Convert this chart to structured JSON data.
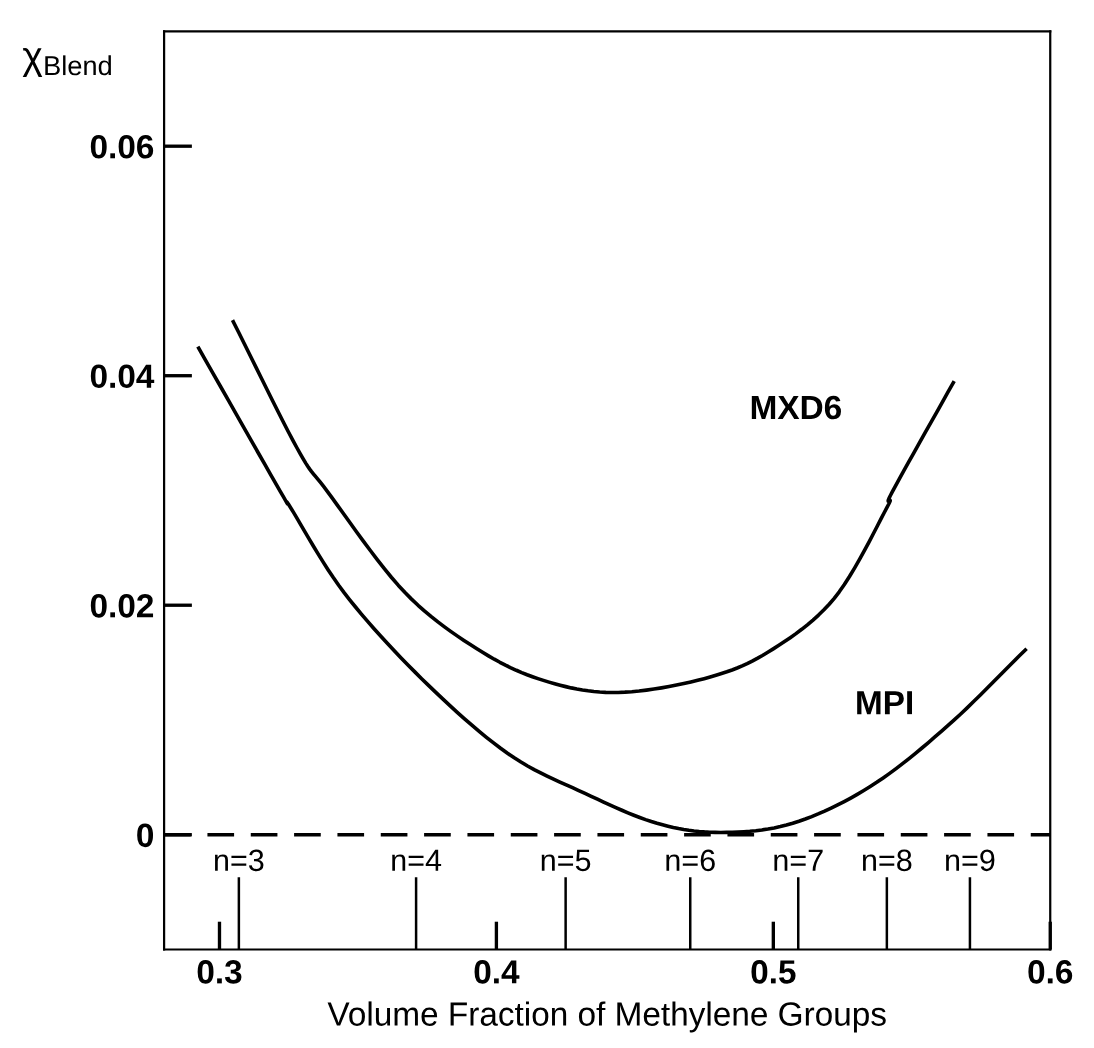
{
  "chart_data": {
    "type": "line",
    "xlabel": "Volume Fraction of Methylene Groups",
    "ylabel": "χ$_{Blend}$",
    "xlim": [
      0.28,
      0.6
    ],
    "ylim": [
      -0.01,
      0.07
    ],
    "xticks": [
      0.3,
      0.4,
      0.5,
      0.6
    ],
    "yticks": [
      0,
      0.02,
      0.04,
      0.06
    ],
    "grid": false,
    "legend": false,
    "marker": "none",
    "line_style": "solid",
    "series": [
      {
        "name": "MXD6",
        "color": "#000000",
        "x": [
          0.305,
          0.328,
          0.339,
          0.367,
          0.395,
          0.419,
          0.444,
          0.475,
          0.498,
          0.522,
          0.541,
          0.543,
          0.565
        ],
        "values": [
          0.0447,
          0.0337,
          0.0299,
          0.0211,
          0.0159,
          0.0133,
          0.0124,
          0.0136,
          0.0159,
          0.0206,
          0.0285,
          0.0299,
          0.0394
        ]
      },
      {
        "type": "bar",
        "color": "#000000",
        "x": [
          0.307,
          0.371,
          0.425,
          0.47,
          0.509,
          0.541,
          0.571
        ],
        "base": [
          -0.01,
          -0.01,
          -0.01,
          -0.01,
          -0.01,
          -0.01,
          -0.01
        ],
        "values": [
          0.0063,
          0.0063,
          0.0063,
          0.0063,
          0.0063,
          0.0063,
          0.0063
        ]
      },
      {
        "name": "MPI",
        "color": "#000000",
        "x": [
          0.2925,
          0.322,
          0.3257,
          0.345,
          0.373,
          0.404,
          0.432,
          0.458,
          0.481,
          0.507,
          0.535,
          0.563,
          0.591
        ],
        "values": [
          0.0424,
          0.0299,
          0.0285,
          0.0211,
          0.0136,
          0.0071,
          0.0036,
          0.001,
          0.0002,
          0.001,
          0.0042,
          0.0095,
          0.0161
        ]
      }
    ],
    "ref_lines": [
      {
        "axis": "y",
        "value": 0,
        "line_style": "dashed",
        "color": "#000000"
      }
    ],
    "annotations": [
      {
        "text": "n=3",
        "x": 0.307,
        "y": -0.0037
      },
      {
        "text": "n=4",
        "x": 0.371,
        "y": -0.0037
      },
      {
        "text": "n=5",
        "x": 0.425,
        "y": -0.0037
      },
      {
        "text": "n=6",
        "x": 0.47,
        "y": -0.0037
      },
      {
        "text": "n=7",
        "x": 0.509,
        "y": -0.0037
      },
      {
        "text": "n=8",
        "x": 0.541,
        "y": -0.0037
      },
      {
        "text": "n=9",
        "x": 0.571,
        "y": -0.0037
      }
    ]
  }
}
